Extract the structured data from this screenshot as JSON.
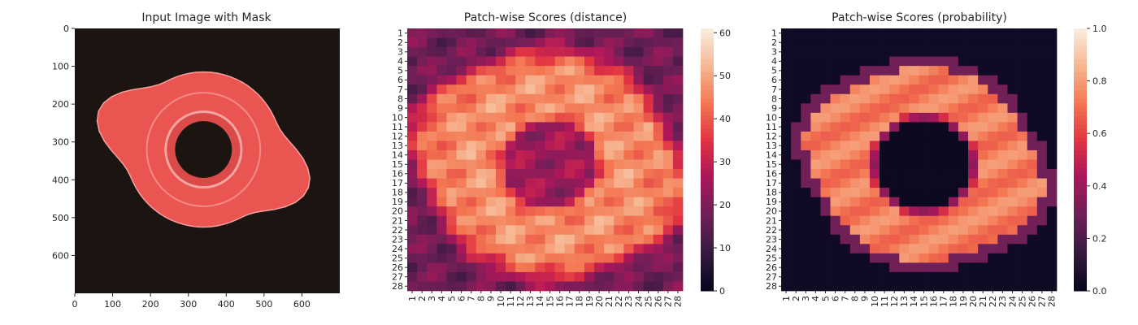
{
  "panels": [
    {
      "title": "Input Image with Mask",
      "x_ticks": [
        "0",
        "100",
        "200",
        "300",
        "400",
        "500",
        "600"
      ],
      "y_ticks": [
        "0",
        "100",
        "200",
        "300",
        "400",
        "500",
        "600"
      ]
    },
    {
      "title": "Patch-wise Scores (distance)",
      "colorbar_ticks": [
        "0",
        "10",
        "20",
        "30",
        "40",
        "50",
        "60"
      ]
    },
    {
      "title": "Patch-wise Scores (probability)",
      "colorbar_ticks": [
        "0.0",
        "0.2",
        "0.4",
        "0.6",
        "0.8",
        "1.0"
      ]
    }
  ],
  "grid_labels": [
    "1",
    "2",
    "3",
    "4",
    "5",
    "6",
    "7",
    "8",
    "9",
    "10",
    "11",
    "12",
    "13",
    "14",
    "15",
    "16",
    "17",
    "18",
    "19",
    "20",
    "21",
    "22",
    "23",
    "24",
    "25",
    "26",
    "27",
    "28"
  ],
  "colors": {
    "heatmap_low": "#03051a",
    "heatmap_mid": "#e13342",
    "heatmap_high": "#faebdd",
    "image_background": "#1c1410",
    "object_tint": "#ea5551"
  },
  "chart_data": [
    {
      "type": "image",
      "title": "Input Image with Mask",
      "xlim": [
        0,
        700
      ],
      "ylim": [
        700,
        0
      ],
      "xticks": [
        0,
        100,
        200,
        300,
        400,
        500,
        600
      ],
      "yticks": [
        0,
        100,
        200,
        300,
        400,
        500,
        600
      ],
      "description": "red-tinted object with four rounded lobes and dark central hole"
    },
    {
      "type": "heatmap",
      "title": "Patch-wise Scores (distance)",
      "rows": 28,
      "cols": 28,
      "colorbar_range": [
        0,
        61
      ],
      "colorbar_ticks": [
        0,
        10,
        20,
        30,
        40,
        50,
        60
      ]
    },
    {
      "type": "heatmap",
      "title": "Patch-wise Scores (probability)",
      "rows": 28,
      "cols": 28,
      "colorbar_range": [
        0,
        1
      ],
      "colorbar_ticks": [
        0.0,
        0.2,
        0.4,
        0.6,
        0.8,
        1.0
      ]
    }
  ]
}
